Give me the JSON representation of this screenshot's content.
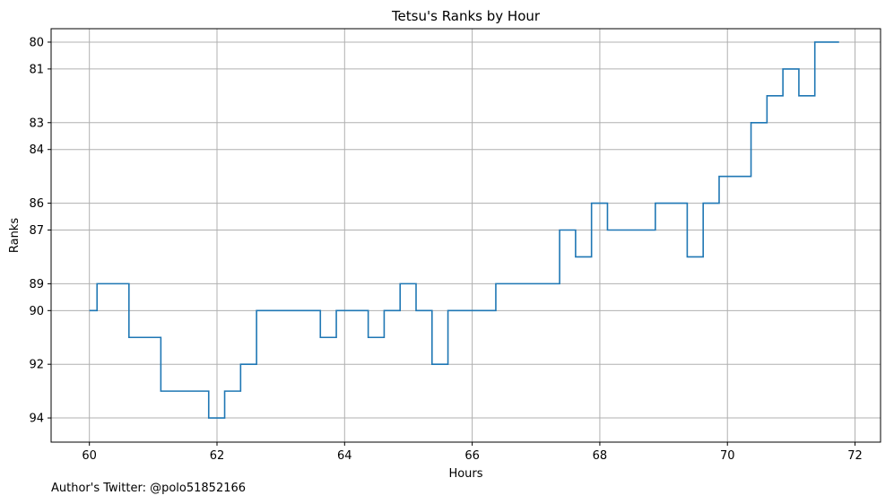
{
  "chart_data": {
    "type": "line",
    "title": "Tetsu's Ranks by Hour",
    "xlabel": "Hours",
    "ylabel": "Ranks",
    "xlim": [
      59.4,
      72.4
    ],
    "ylim": [
      94.9,
      79.5
    ],
    "y_inverted": true,
    "grid": true,
    "step": "post",
    "xticks": [
      60,
      62,
      64,
      66,
      68,
      70,
      72
    ],
    "yticks": [
      80,
      81,
      83,
      84,
      86,
      87,
      89,
      90,
      92,
      94
    ],
    "color": "#1f77b4",
    "series": [
      {
        "x": [
          60.0,
          60.12,
          60.62,
          61.12,
          61.87,
          62.12,
          62.37,
          62.62,
          63.62,
          63.87,
          64.37,
          64.62,
          64.87,
          65.12,
          65.37,
          65.62,
          66.37,
          67.37,
          67.62,
          67.87,
          68.12,
          68.87,
          69.37,
          69.62,
          69.87,
          70.37,
          70.62,
          70.87,
          71.12,
          71.37,
          71.75
        ],
        "y": [
          90,
          89,
          91,
          93,
          94,
          93,
          92,
          90,
          91,
          90,
          91,
          90,
          89,
          90,
          92,
          90,
          89,
          87,
          88,
          86,
          87,
          86,
          88,
          86,
          85,
          83,
          82,
          81,
          82,
          80,
          80
        ]
      }
    ]
  },
  "footer": {
    "text": "Author's Twitter: @polo51852166"
  }
}
